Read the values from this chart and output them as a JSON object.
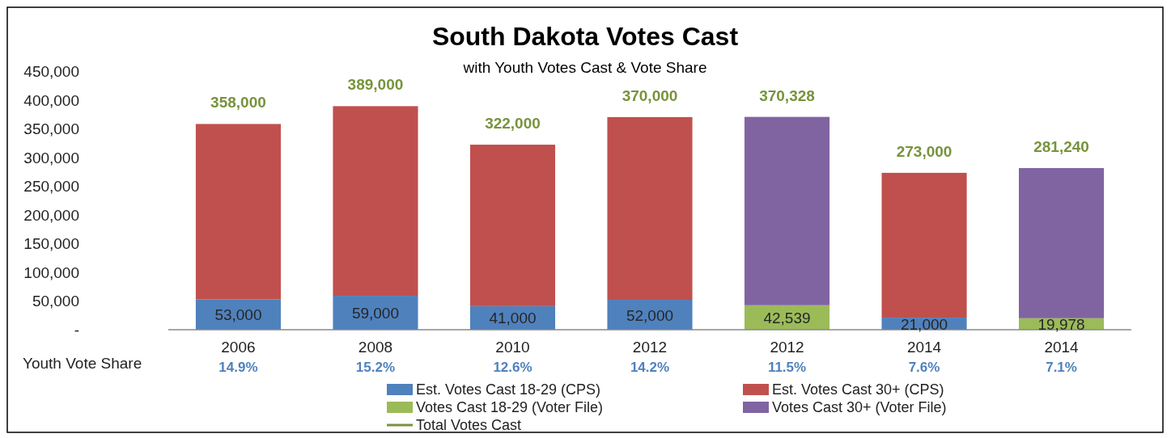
{
  "chart_data": {
    "type": "bar",
    "title": "South Dakota Votes Cast",
    "subtitle": "with Youth Votes Cast & Vote Share",
    "categories": [
      "2006",
      "2008",
      "2010",
      "2012",
      "2012",
      "2014",
      "2014"
    ],
    "stacked": true,
    "ylim": [
      0,
      450000
    ],
    "yticks": [
      {
        "value": 0,
        "label": "-"
      },
      {
        "value": 50000,
        "label": "50,000"
      },
      {
        "value": 100000,
        "label": "100,000"
      },
      {
        "value": 150000,
        "label": "150,000"
      },
      {
        "value": 200000,
        "label": "200,000"
      },
      {
        "value": 250000,
        "label": "250,000"
      },
      {
        "value": 300000,
        "label": "300,000"
      },
      {
        "value": 350000,
        "label": "350,000"
      },
      {
        "value": 400000,
        "label": "400,000"
      },
      {
        "value": 450000,
        "label": "450,000"
      }
    ],
    "grid": false,
    "legend": "bottom",
    "series": [
      {
        "name": "Est. Votes Cast 18-29 (CPS)",
        "color": "#4f81bd",
        "values": [
          53000,
          59000,
          41000,
          52000,
          null,
          21000,
          null
        ],
        "value_labels": [
          "53,000",
          "59,000",
          "41,000",
          "52,000",
          null,
          "21,000",
          null
        ]
      },
      {
        "name": "Est. Votes Cast 30+ (CPS)",
        "color": "#c0504d",
        "values": [
          305000,
          330000,
          281000,
          318000,
          null,
          252000,
          null
        ]
      },
      {
        "name": "Votes Cast 18-29 (Voter File)",
        "color": "#9bbb59",
        "values": [
          null,
          null,
          null,
          null,
          42539,
          null,
          19978
        ],
        "value_labels": [
          null,
          null,
          null,
          null,
          "42,539",
          null,
          "19,978"
        ]
      },
      {
        "name": "Votes Cast 30+ (Voter File)",
        "color": "#8064a2",
        "values": [
          null,
          null,
          null,
          null,
          327789,
          null,
          261262
        ]
      }
    ],
    "totals": [
      "358,000",
      "389,000",
      "322,000",
      "370,000",
      "370,328",
      "273,000",
      "281,240"
    ],
    "annotations": [
      "Youth Vote Share",
      "14.9%",
      "15.2%",
      "12.6%",
      "14.2%",
      "11.5%",
      "7.6%",
      "7.1%",
      "Total Votes Cast"
    ]
  }
}
